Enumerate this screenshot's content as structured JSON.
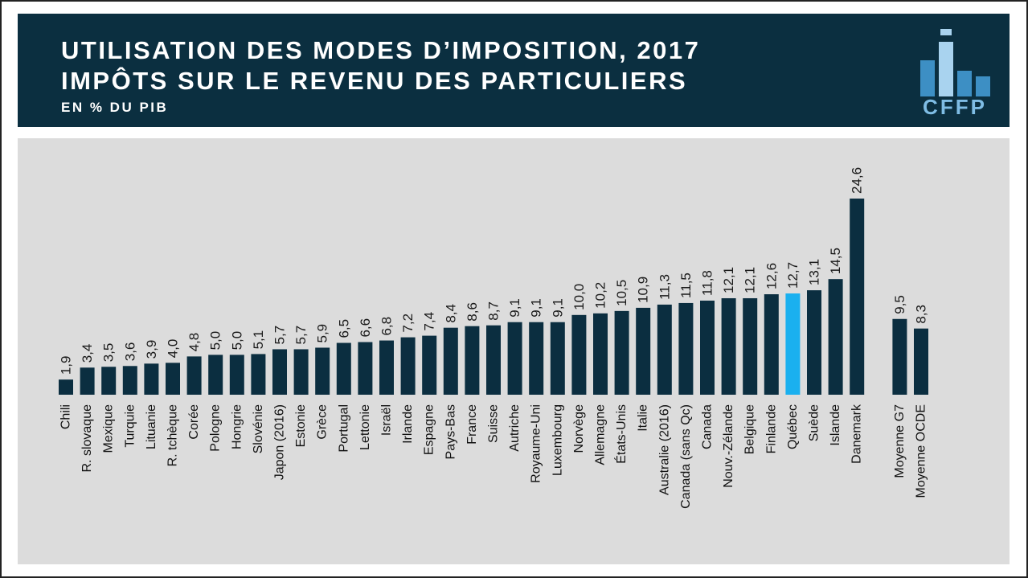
{
  "chart_data": {
    "type": "bar",
    "title": [
      "UTILISATION DES MODES D’IMPOSITION, 2017",
      "IMPÔTS SUR LE REVENU DES PARTICULIERS"
    ],
    "subtitle": "EN % DU PIB",
    "logo": "CFFP",
    "categories": [
      "Chili",
      "R. slovaque",
      "Mexique",
      "Turquie",
      "Lituanie",
      "R. tchèque",
      "Corée",
      "Pologne",
      "Hongrie",
      "Slovénie",
      "Japon (2016)",
      "Estonie",
      "Grèce",
      "Portugal",
      "Lettonie",
      "Israël",
      "Irlande",
      "Espagne",
      "Pays-Bas",
      "France",
      "Suisse",
      "Autriche",
      "Royaume-Uni",
      "Luxembourg",
      "Norvège",
      "Allemagne",
      "États-Unis",
      "Italie",
      "Australie (2016)",
      "Canada (sans Qc)",
      "Canada",
      "Nouv.-Zélande",
      "Belgique",
      "Finlande",
      "Québec",
      "Suède",
      "Islande",
      "Danemark",
      null,
      "Moyenne G7",
      "Moyenne OCDE"
    ],
    "values": [
      1.9,
      3.4,
      3.5,
      3.6,
      3.9,
      4.0,
      4.8,
      5.0,
      5.0,
      5.1,
      5.7,
      5.7,
      5.9,
      6.5,
      6.6,
      6.8,
      7.2,
      7.4,
      8.4,
      8.6,
      8.7,
      9.1,
      9.1,
      9.1,
      10.0,
      10.2,
      10.5,
      10.9,
      11.3,
      11.5,
      11.8,
      12.1,
      12.1,
      12.6,
      12.7,
      13.1,
      14.5,
      24.6,
      null,
      9.5,
      8.3
    ],
    "value_labels": [
      "1,9",
      "3,4",
      "3,5",
      "3,6",
      "3,9",
      "4,0",
      "4,8",
      "5,0",
      "5,0",
      "5,1",
      "5,7",
      "5,7",
      "5,9",
      "6,5",
      "6,6",
      "6,8",
      "7,2",
      "7,4",
      "8,4",
      "8,6",
      "8,7",
      "9,1",
      "9,1",
      "9,1",
      "10,0",
      "10,2",
      "10,5",
      "10,9",
      "11,3",
      "11,5",
      "11,8",
      "12,1",
      "12,1",
      "12,6",
      "12,7",
      "13,1",
      "14,5",
      "24,6",
      null,
      "9,5",
      "8,3"
    ],
    "colors": [
      "#0b2e40",
      "#0b2e40",
      "#0b2e40",
      "#0b2e40",
      "#0b2e40",
      "#0b2e40",
      "#0b2e40",
      "#0b2e40",
      "#0b2e40",
      "#0b2e40",
      "#0b2e40",
      "#0b2e40",
      "#0b2e40",
      "#0b2e40",
      "#0b2e40",
      "#0b2e40",
      "#0b2e40",
      "#0b2e40",
      "#0b2e40",
      "#0b2e40",
      "#0b2e40",
      "#0b2e40",
      "#0b2e40",
      "#0b2e40",
      "#0b2e40",
      "#0b2e40",
      "#0b2e40",
      "#0b2e40",
      "#0b2e40",
      "#0b2e40",
      "#0b2e40",
      "#0b2e40",
      "#0b2e40",
      "#0b2e40",
      "#1ab0ef",
      "#0b2e40",
      "#0b2e40",
      "#0b2e40",
      null,
      "#0b2e40",
      "#0b2e40"
    ]
  }
}
